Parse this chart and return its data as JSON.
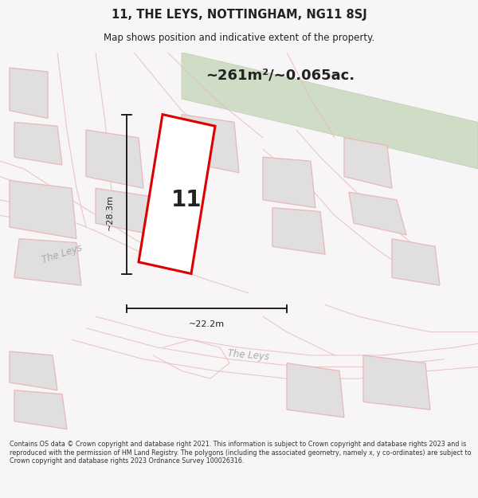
{
  "title_line1": "11, THE LEYS, NOTTINGHAM, NG11 8SJ",
  "title_line2": "Map shows position and indicative extent of the property.",
  "area_text": "~261m²/~0.065ac.",
  "label_number": "11",
  "dim_vertical": "~28.3m",
  "dim_horizontal": "~22.2m",
  "road_label1": "The Leys",
  "road_label2": "The Leys",
  "footer_text": "Contains OS data © Crown copyright and database right 2021. This information is subject to Crown copyright and database rights 2023 and is reproduced with the permission of HM Land Registry. The polygons (including the associated geometry, namely x, y co-ordinates) are subject to Crown copyright and database rights 2023 Ordnance Survey 100026316.",
  "bg_color": "#f7f5f5",
  "map_bg": "#ffffff",
  "road_color": "#e8b8b8",
  "road_fill": "#e8b8b8",
  "plot_outline_color": "#dd0000",
  "plot_fill": "#ffffff",
  "neighbor_fill": "#e0dede",
  "neighbor_outline": "#e8b8b8",
  "green_fill": "#c8d8be",
  "green_edge": "#b8c8ae",
  "text_color": "#222222",
  "footer_color": "#333333",
  "dim_line_color": "#111111",
  "road_text_color": "#aaaaaa"
}
